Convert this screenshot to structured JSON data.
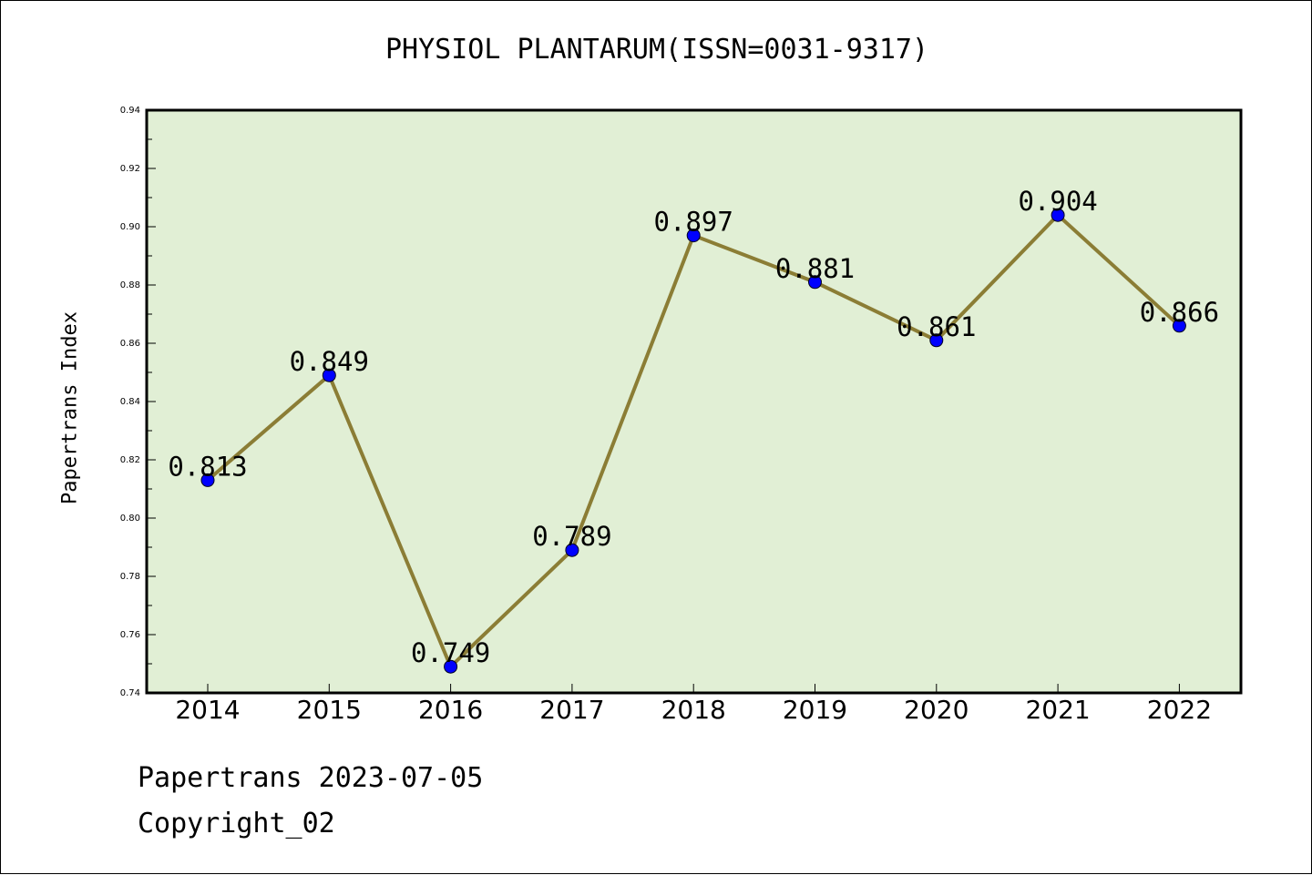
{
  "chart_data": {
    "type": "line",
    "title": "PHYSIOL PLANTARUM(ISSN=0031-9317)",
    "ylabel": "Papertrans Index",
    "xlabel": "",
    "categories": [
      "2014",
      "2015",
      "2016",
      "2017",
      "2018",
      "2019",
      "2020",
      "2021",
      "2022"
    ],
    "series": [
      {
        "values": [
          0.813,
          0.849,
          0.749,
          0.789,
          0.897,
          0.881,
          0.861,
          0.904,
          0.866
        ]
      }
    ],
    "data_labels": [
      "0.813",
      "0.849",
      "0.749",
      "0.789",
      "0.897",
      "0.881",
      "0.861",
      "0.904",
      "0.866"
    ],
    "ylim": [
      0.74,
      0.94
    ],
    "y_ticks": [
      "0.74",
      "0.76",
      "0.78",
      "0.80",
      "0.82",
      "0.84",
      "0.86",
      "0.88",
      "0.90",
      "0.92",
      "0.94"
    ],
    "grid": false,
    "legend": "none"
  },
  "footer": {
    "date_line": "Papertrans 2023-07-05",
    "copyright_line": "Copyright_02"
  },
  "colors": {
    "plot_background": "#e1efd5",
    "line": "#8b7d35",
    "marker": "#0000ff"
  }
}
